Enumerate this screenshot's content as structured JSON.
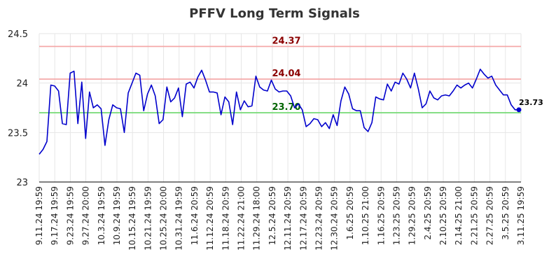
{
  "chart_data": {
    "type": "line",
    "title": "PFFV Long Term Signals",
    "xlabel": "",
    "ylabel": "",
    "ylim": [
      23,
      24.5
    ],
    "yticks": [
      "23",
      "23.5",
      "24",
      "24.5"
    ],
    "xticks": [
      "9.11.24 19:59",
      "9.17.24 19:59",
      "9.23.24 19:59",
      "9.27.24 20:00",
      "10.3.24 19:59",
      "10.9.24 19:59",
      "10.15.24 19:59",
      "10.21.24 19:59",
      "10.25.24 20:00",
      "10.31.24 19:59",
      "11.6.24 20:59",
      "11.12.24 20:59",
      "11.18.24 20:59",
      "11.22.24 21:00",
      "11.29.24 18:00",
      "12.5.24 20:59",
      "12.11.24 20:59",
      "12.17.24 20:59",
      "12.23.24 20:59",
      "12.30.24 20:59",
      "1.6.25 20:59",
      "1.10.25 21:00",
      "1.16.25 20:59",
      "1.23.25 20:59",
      "1.29.25 20:59",
      "2.4.25 20:59",
      "2.10.25 20:59",
      "2.14.25 21:00",
      "2.21.25 20:59",
      "2.27.25 20:59",
      "3.5.25 20:59",
      "3.11.25 19:59"
    ],
    "grid": true,
    "legend": "none",
    "series": [
      {
        "color": "#0000cc",
        "values": [
          23.28,
          23.33,
          23.41,
          23.98,
          23.97,
          23.92,
          23.59,
          23.58,
          24.1,
          24.12,
          23.59,
          24.01,
          23.44,
          23.91,
          23.75,
          23.78,
          23.74,
          23.37,
          23.63,
          23.78,
          23.75,
          23.74,
          23.5,
          23.9,
          24.0,
          24.1,
          24.08,
          23.72,
          23.89,
          23.98,
          23.87,
          23.59,
          23.63,
          23.96,
          23.81,
          23.85,
          23.95,
          23.66,
          23.99,
          24.01,
          23.95,
          24.06,
          24.13,
          24.03,
          23.91,
          23.91,
          23.9,
          23.68,
          23.86,
          23.81,
          23.58,
          23.91,
          23.73,
          23.82,
          23.76,
          23.77,
          24.07,
          23.96,
          23.93,
          23.92,
          24.03,
          23.94,
          23.91,
          23.92,
          23.92,
          23.87,
          23.75,
          23.79,
          23.73,
          23.56,
          23.59,
          23.64,
          23.63,
          23.56,
          23.6,
          23.54,
          23.68,
          23.57,
          23.82,
          23.96,
          23.89,
          23.74,
          23.72,
          23.72,
          23.55,
          23.51,
          23.6,
          23.86,
          23.84,
          23.83,
          23.99,
          23.92,
          24.01,
          23.99,
          24.1,
          24.04,
          23.95,
          24.1,
          23.94,
          23.75,
          23.79,
          23.92,
          23.85,
          23.83,
          23.87,
          23.88,
          23.87,
          23.92,
          23.98,
          23.95,
          23.98,
          24.0,
          23.95,
          24.04,
          24.14,
          24.09,
          24.05,
          24.07,
          23.98,
          23.93,
          23.88,
          23.88,
          23.78,
          23.73,
          23.73
        ]
      }
    ],
    "hlines": [
      {
        "value": 24.37,
        "label": "24.37",
        "line_color": "#f4a9a9",
        "text_color": "#8b0000"
      },
      {
        "value": 24.04,
        "label": "24.04",
        "line_color": "#f4a9a9",
        "text_color": "#8b0000"
      },
      {
        "value": 23.7,
        "label": "23.70",
        "line_color": "#7ddc7d",
        "text_color": "#006400"
      }
    ],
    "last_value_label": "23.73"
  }
}
